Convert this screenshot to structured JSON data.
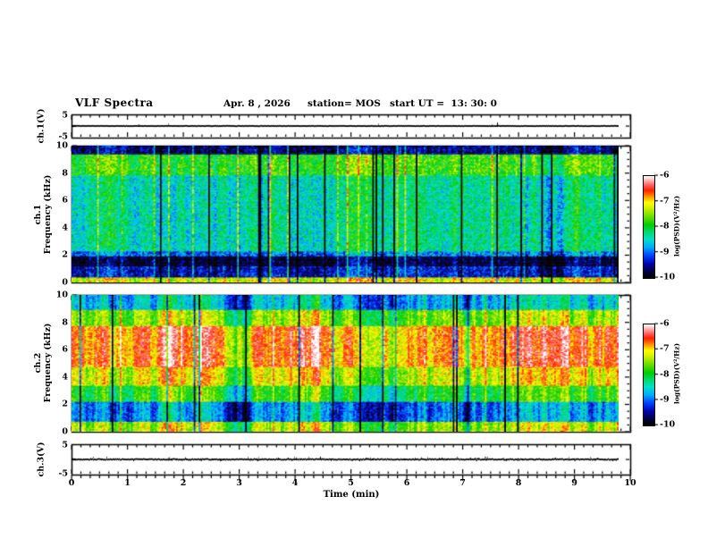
{
  "chart_data": {
    "type": "heatmap",
    "title": "VLF Spectra",
    "date": "Apr. 8 , 2026",
    "station": "station= MOS",
    "start_ut": "start UT =  13: 30: 0",
    "xlabel": "Time (min)",
    "xlim": [
      0,
      10
    ],
    "x_tick_labels": [
      "0",
      "1",
      "2",
      "3",
      "4",
      "5",
      "6",
      "7",
      "8",
      "9",
      "10"
    ],
    "x_minor_divisions": 6,
    "data_end_min": 9.78,
    "colormap": {
      "min": -10,
      "max": -6,
      "stops": [
        {
          "t": 0.0,
          "color": "#000000"
        },
        {
          "t": 0.06,
          "color": "#00003a"
        },
        {
          "t": 0.14,
          "color": "#0000b0"
        },
        {
          "t": 0.22,
          "color": "#0040ff"
        },
        {
          "t": 0.3,
          "color": "#00a8ff"
        },
        {
          "t": 0.38,
          "color": "#00e0c8"
        },
        {
          "t": 0.46,
          "color": "#00d860"
        },
        {
          "t": 0.52,
          "color": "#00cc00"
        },
        {
          "t": 0.6,
          "color": "#66dd00"
        },
        {
          "t": 0.68,
          "color": "#ccee00"
        },
        {
          "t": 0.74,
          "color": "#ffff00"
        },
        {
          "t": 0.8,
          "color": "#ff9000"
        },
        {
          "t": 0.86,
          "color": "#ff2000"
        },
        {
          "t": 0.91,
          "color": "#ff6060"
        },
        {
          "t": 0.96,
          "color": "#ffb8b8"
        },
        {
          "t": 1.0,
          "color": "#ffffff"
        }
      ]
    },
    "colorbar": {
      "tick_labels": [
        "-6",
        "-7",
        "-8",
        "-9",
        "-10"
      ],
      "label": "log(PSD)(V²/Hz)"
    },
    "panels": [
      {
        "id": "wave1",
        "kind": "waveform",
        "ylabel": "ch.1(V)",
        "ylim": [
          -5,
          5
        ],
        "y_tick_labels": [
          "5",
          "-5"
        ],
        "baseline": 0,
        "noise_amp": 0.25,
        "spike_prob": 0.003,
        "dot_prob": 0.02
      },
      {
        "id": "spec1",
        "kind": "spectrogram",
        "ylabel_lines": [
          "ch.1",
          "Frequency (kHz)"
        ],
        "ylim": [
          0,
          10
        ],
        "y_tick_labels": [
          "10",
          "8",
          "6",
          "4",
          "2",
          "0"
        ],
        "y_tick_values": [
          10,
          8,
          6,
          4,
          2,
          0
        ],
        "y_minor_step": 0.5,
        "bands": [
          [
            0.0,
            0.35,
            -7.15
          ],
          [
            0.35,
            1.15,
            -9.3
          ],
          [
            1.15,
            1.95,
            -9.75
          ],
          [
            1.95,
            2.3,
            -8.9
          ],
          [
            2.3,
            7.8,
            -8.3
          ],
          [
            7.8,
            9.35,
            -7.75
          ],
          [
            9.35,
            10.0,
            -9.55
          ]
        ],
        "noise": 0.45,
        "col_smooth_amp": 0.6,
        "dropout_prob": 0.06,
        "dropout_depth": 2.2,
        "boost_prob": 0.05,
        "boost_amp": 1.0
      },
      {
        "id": "spec2",
        "kind": "spectrogram",
        "ylabel_lines": [
          "ch.2",
          "Frequency (kHz)"
        ],
        "ylim": [
          0,
          10
        ],
        "y_tick_labels": [
          "10",
          "8",
          "6",
          "4",
          "2",
          "0"
        ],
        "y_tick_values": [
          10,
          8,
          6,
          4,
          2,
          0
        ],
        "y_minor_step": 0.5,
        "bands": [
          [
            0.0,
            0.7,
            -7.5
          ],
          [
            0.7,
            2.2,
            -9.0
          ],
          [
            2.2,
            3.4,
            -8.0
          ],
          [
            3.4,
            4.7,
            -7.3
          ],
          [
            4.7,
            7.7,
            -6.8
          ],
          [
            7.7,
            8.9,
            -7.6
          ],
          [
            8.9,
            10.0,
            -8.75
          ]
        ],
        "noise": 0.35,
        "col_smooth_amp": 0.9,
        "dropout_prob": 0.04,
        "dropout_depth": 2.0,
        "boost_prob": 0.025,
        "boost_amp": 0.7
      },
      {
        "id": "wave3",
        "kind": "waveform",
        "ylabel": "ch.3(V)",
        "ylim": [
          -5,
          5
        ],
        "y_tick_labels": [
          "5",
          "-5"
        ],
        "baseline": 0,
        "noise_amp": 0.5,
        "spike_prob": 0.006,
        "dot_prob": 0.18
      }
    ]
  }
}
